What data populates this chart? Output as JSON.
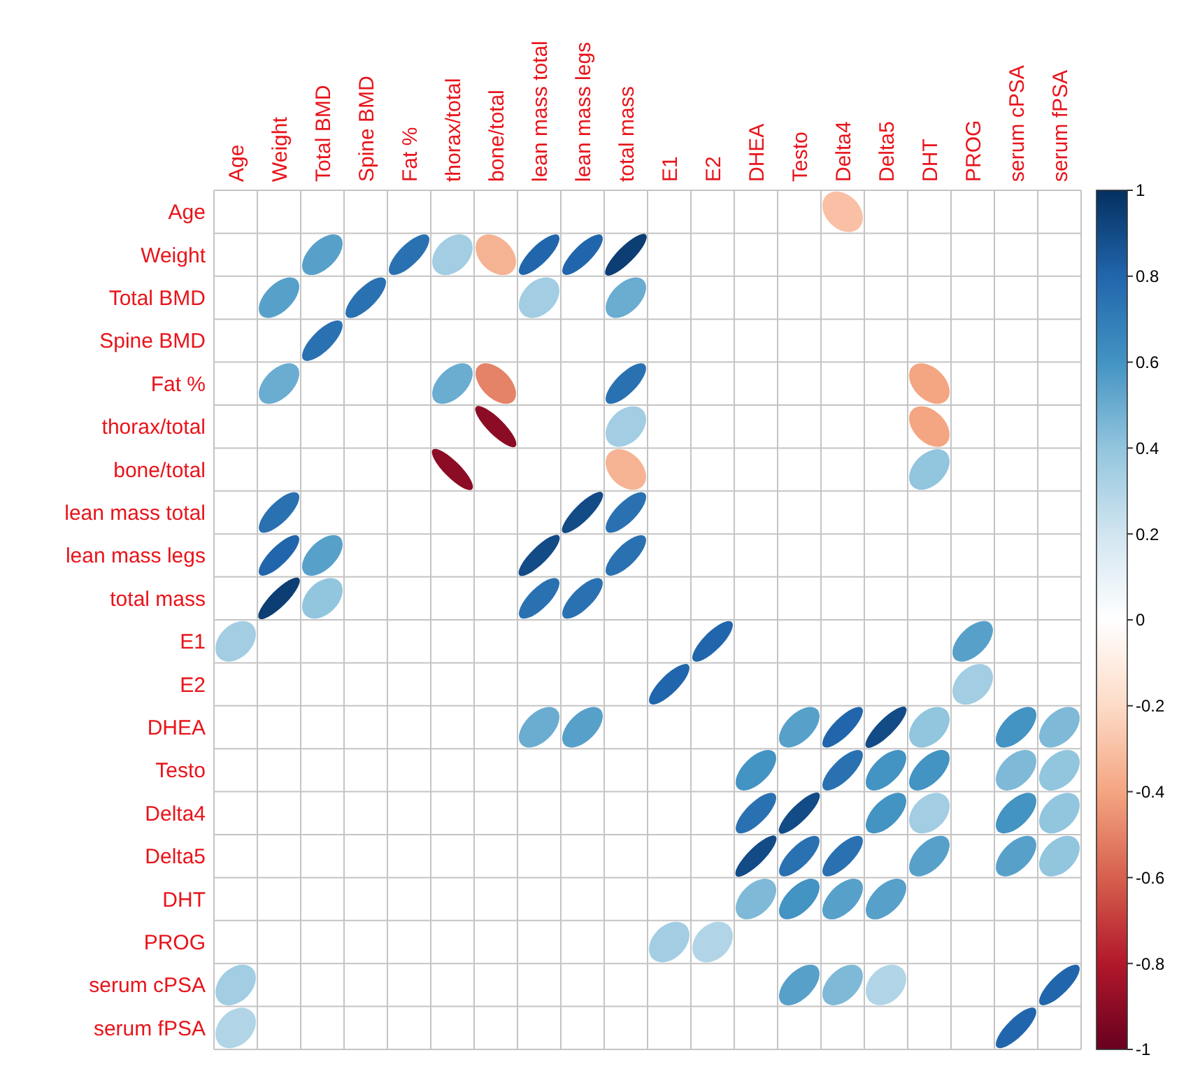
{
  "chart_data": {
    "type": "heatmap",
    "categories": [
      "Age",
      "Weight",
      "Total BMD",
      "Spine BMD",
      "Fat %",
      "thorax/total",
      "bone/total",
      "lean mass total",
      "lean mass legs",
      "total mass",
      "E1",
      "E2",
      "DHEA",
      "Testo",
      "Delta4",
      "Delta5",
      "DHT",
      "PROG",
      "serum cPSA",
      "serum fPSA"
    ],
    "y_categories": [
      "Age",
      "Weight",
      "Total BMD",
      "Spine BMD",
      "Fat %",
      "thorax/total",
      "bone/total",
      "lean mass total",
      "lean mass legs",
      "total mass",
      "E1",
      "E2",
      "DHEA",
      "Testo",
      "Delta4",
      "Delta5",
      "DHT",
      "PROG",
      "serum cPSA",
      "serum fPSA"
    ],
    "cells": [
      [
        null,
        null,
        null,
        null,
        null,
        null,
        null,
        null,
        null,
        null,
        null,
        null,
        null,
        null,
        -0.3,
        null,
        null,
        null,
        null,
        null
      ],
      [
        null,
        null,
        0.55,
        null,
        0.75,
        0.35,
        -0.35,
        0.8,
        0.8,
        0.95,
        null,
        null,
        null,
        null,
        null,
        null,
        null,
        null,
        null,
        null
      ],
      [
        null,
        0.55,
        null,
        0.75,
        null,
        null,
        null,
        0.35,
        null,
        0.5,
        null,
        null,
        null,
        null,
        null,
        null,
        null,
        null,
        null,
        null
      ],
      [
        null,
        null,
        0.75,
        null,
        null,
        null,
        null,
        null,
        null,
        null,
        null,
        null,
        null,
        null,
        null,
        null,
        null,
        null,
        null,
        null
      ],
      [
        null,
        0.5,
        null,
        null,
        null,
        0.5,
        -0.5,
        null,
        null,
        0.75,
        null,
        null,
        null,
        null,
        null,
        null,
        -0.4,
        null,
        null,
        null
      ],
      [
        null,
        null,
        null,
        null,
        null,
        null,
        -0.9,
        null,
        null,
        0.35,
        null,
        null,
        null,
        null,
        null,
        null,
        -0.4,
        null,
        null,
        null
      ],
      [
        null,
        null,
        null,
        null,
        null,
        -0.9,
        null,
        null,
        null,
        -0.35,
        null,
        null,
        null,
        null,
        null,
        null,
        0.4,
        null,
        null,
        null
      ],
      [
        null,
        0.75,
        null,
        null,
        null,
        null,
        null,
        null,
        0.9,
        0.75,
        null,
        null,
        null,
        null,
        null,
        null,
        null,
        null,
        null,
        null
      ],
      [
        null,
        0.8,
        0.55,
        null,
        null,
        null,
        null,
        0.9,
        null,
        0.75,
        null,
        null,
        null,
        null,
        null,
        null,
        null,
        null,
        null,
        null
      ],
      [
        null,
        0.95,
        0.4,
        null,
        null,
        null,
        null,
        0.75,
        0.75,
        null,
        null,
        null,
        null,
        null,
        null,
        null,
        null,
        null,
        null,
        null
      ],
      [
        0.35,
        null,
        null,
        null,
        null,
        null,
        null,
        null,
        null,
        null,
        null,
        0.8,
        null,
        null,
        null,
        null,
        null,
        0.55,
        null,
        null
      ],
      [
        null,
        null,
        null,
        null,
        null,
        null,
        null,
        null,
        null,
        null,
        0.8,
        null,
        null,
        null,
        null,
        null,
        null,
        0.35,
        null,
        null
      ],
      [
        null,
        null,
        null,
        null,
        null,
        null,
        null,
        0.5,
        0.55,
        null,
        null,
        null,
        null,
        0.55,
        0.8,
        0.9,
        0.4,
        null,
        0.6,
        0.45
      ],
      [
        null,
        null,
        null,
        null,
        null,
        null,
        null,
        null,
        null,
        null,
        null,
        null,
        0.6,
        null,
        0.75,
        0.6,
        0.6,
        null,
        0.45,
        0.4
      ],
      [
        null,
        null,
        null,
        null,
        null,
        null,
        null,
        null,
        null,
        null,
        null,
        null,
        0.75,
        0.9,
        null,
        0.6,
        0.35,
        null,
        0.6,
        0.4
      ],
      [
        null,
        null,
        null,
        null,
        null,
        null,
        null,
        null,
        null,
        null,
        null,
        null,
        0.9,
        0.75,
        0.75,
        null,
        0.55,
        null,
        0.55,
        0.4
      ],
      [
        null,
        null,
        null,
        null,
        null,
        null,
        null,
        null,
        null,
        null,
        null,
        null,
        0.45,
        0.6,
        0.55,
        0.55,
        null,
        null,
        null,
        null
      ],
      [
        null,
        null,
        null,
        null,
        null,
        null,
        null,
        null,
        null,
        null,
        0.35,
        0.3,
        null,
        null,
        null,
        null,
        null,
        null,
        null,
        null
      ],
      [
        0.35,
        null,
        null,
        null,
        null,
        null,
        null,
        null,
        null,
        null,
        null,
        null,
        null,
        0.55,
        0.45,
        0.3,
        null,
        null,
        null,
        0.8
      ],
      [
        0.3,
        null,
        null,
        null,
        null,
        null,
        null,
        null,
        null,
        null,
        null,
        null,
        null,
        null,
        null,
        null,
        null,
        null,
        0.8,
        null
      ]
    ],
    "clim": [
      -1,
      1
    ],
    "cticks": [
      1,
      0.8,
      0.6,
      0.4,
      0.2,
      0,
      -0.2,
      -0.4,
      -0.6,
      -0.8,
      -1
    ],
    "grid": true
  }
}
